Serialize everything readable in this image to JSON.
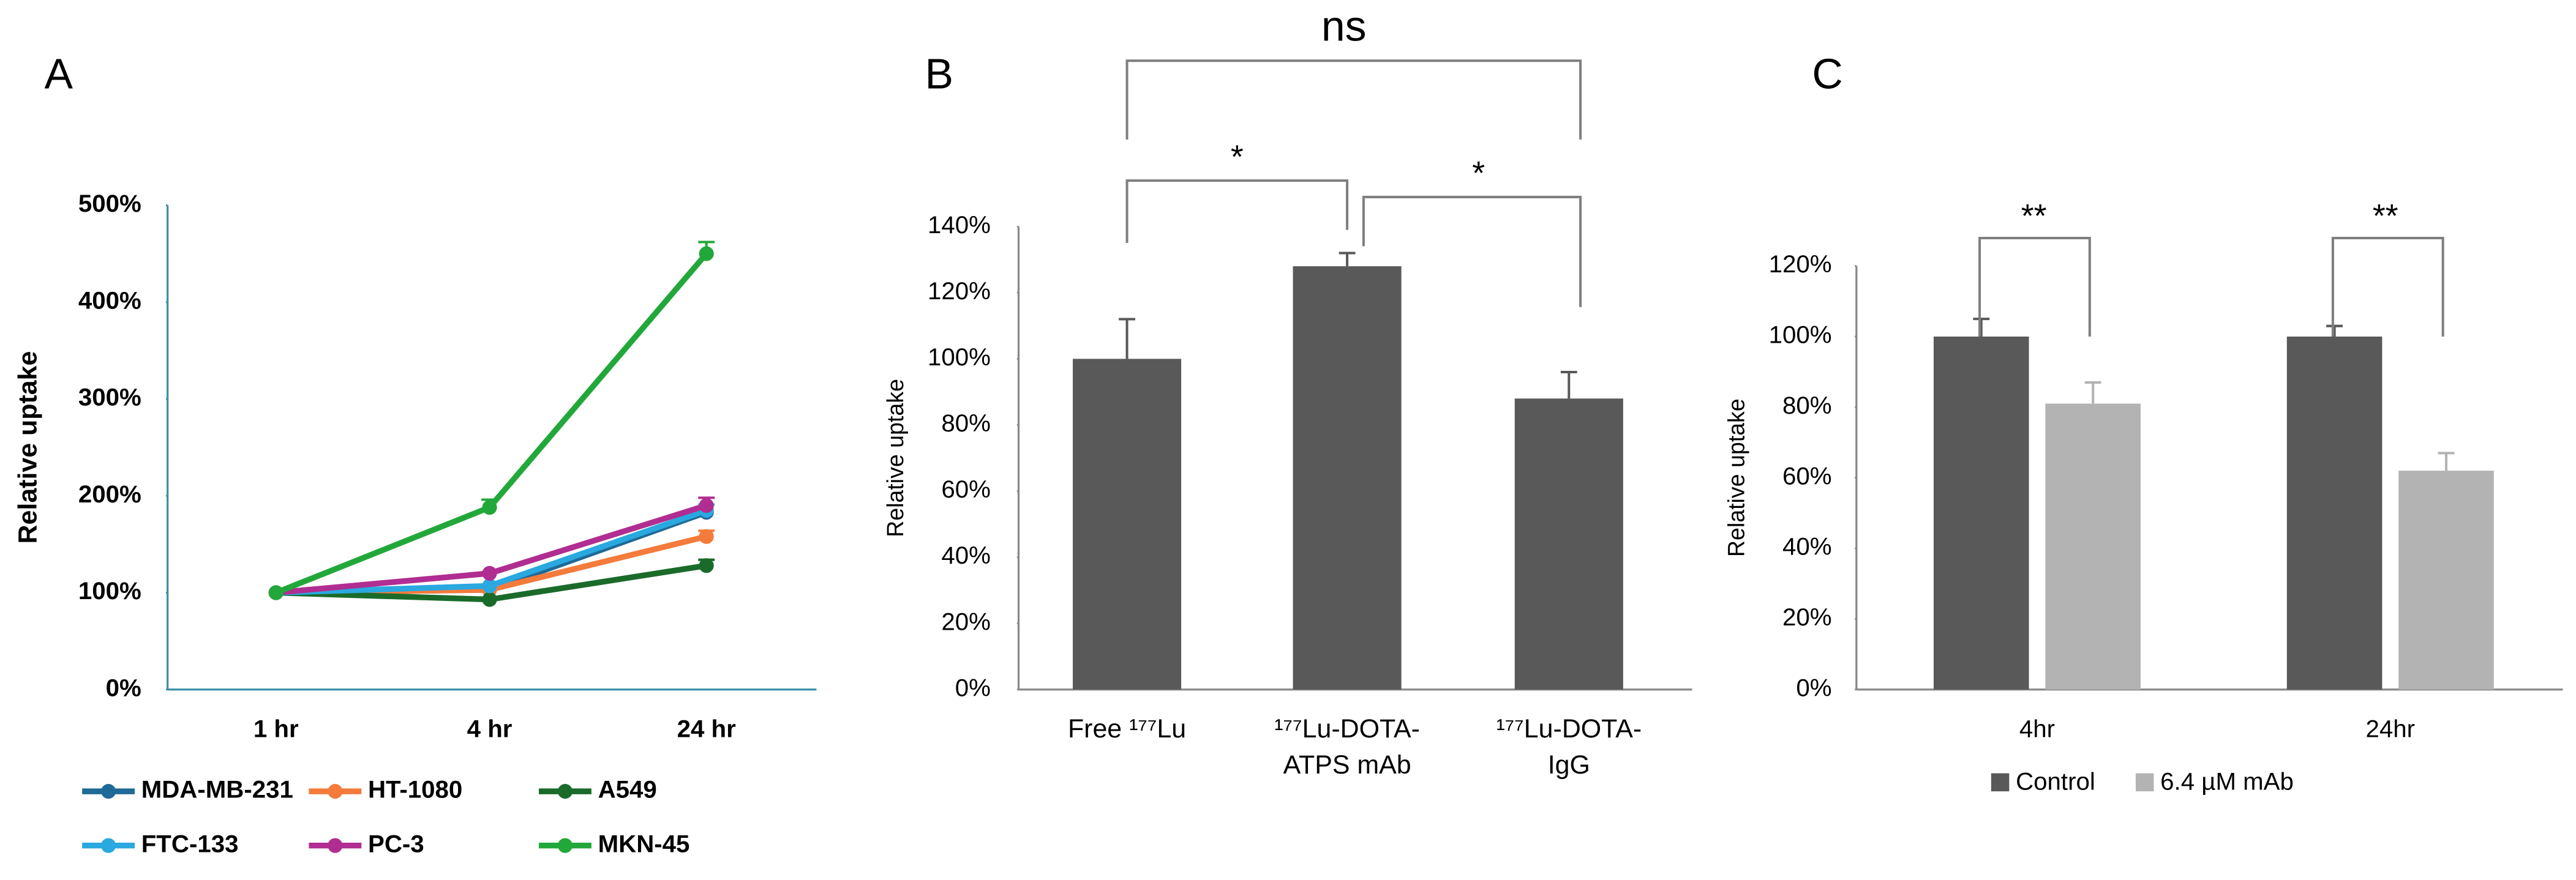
{
  "chart_data": [
    {
      "type": "line",
      "panel_label": "A",
      "ylabel": "Relative uptake",
      "categories": [
        "1 hr",
        "4 hr",
        "24 hr"
      ],
      "series": [
        {
          "name": "MDA-MB-231",
          "color": "#1f6a96",
          "values": [
            100,
            103,
            183
          ],
          "errors": [
            null,
            null,
            null
          ]
        },
        {
          "name": "HT-1080",
          "color": "#f47b3b",
          "values": [
            100,
            103,
            158
          ],
          "errors": [
            null,
            null,
            6
          ]
        },
        {
          "name": "A549",
          "color": "#1a6b2a",
          "values": [
            100,
            93,
            128
          ],
          "errors": [
            null,
            null,
            6
          ]
        },
        {
          "name": "FTC-133",
          "color": "#2aa8e0",
          "values": [
            100,
            107,
            185
          ],
          "errors": [
            null,
            null,
            6
          ]
        },
        {
          "name": "PC-3",
          "color": "#b02d91",
          "values": [
            100,
            120,
            190
          ],
          "errors": [
            null,
            null,
            8
          ]
        },
        {
          "name": "MKN-45",
          "color": "#22a83a",
          "values": [
            100,
            188,
            450
          ],
          "errors": [
            null,
            8,
            12
          ]
        }
      ],
      "ylim": [
        0,
        500
      ],
      "yticks": [
        {
          "value": 0,
          "label": "0%"
        },
        {
          "value": 100,
          "label": "100%"
        },
        {
          "value": 200,
          "label": "200%"
        },
        {
          "value": 300,
          "label": "300%"
        },
        {
          "value": 400,
          "label": "400%"
        },
        {
          "value": 500,
          "label": "500%"
        }
      ]
    },
    {
      "type": "bar",
      "panel_label": "B",
      "ylabel": "Relative uptake",
      "color": "#595959",
      "categories": [
        [
          "Free ¹⁷⁷Lu"
        ],
        [
          "¹⁷⁷Lu-DOTA-",
          "ATPS mAb"
        ],
        [
          "¹⁷⁷Lu-DOTA-",
          "IgG"
        ]
      ],
      "values": [
        100,
        128,
        88
      ],
      "errors": [
        12,
        4,
        8
      ],
      "ylim": [
        0,
        140
      ],
      "yticks": [
        {
          "value": 0,
          "label": "0%"
        },
        {
          "value": 20,
          "label": "20%"
        },
        {
          "value": 40,
          "label": "40%"
        },
        {
          "value": 60,
          "label": "60%"
        },
        {
          "value": 80,
          "label": "80%"
        },
        {
          "value": 100,
          "label": "100%"
        },
        {
          "value": 120,
          "label": "120%"
        },
        {
          "value": 140,
          "label": "140%"
        }
      ],
      "annotations": [
        "ns",
        "*",
        "*"
      ]
    },
    {
      "type": "grouped_bar",
      "panel_label": "C",
      "ylabel": "Relative uptake",
      "categories": [
        "4hr",
        "24hr"
      ],
      "series": [
        {
          "name": "Control",
          "color": "#595959",
          "values": [
            100,
            100
          ],
          "errors": [
            5,
            3
          ]
        },
        {
          "name": "6.4 µM mAb",
          "color": "#b3b3b3",
          "values": [
            81,
            62
          ],
          "errors": [
            6,
            5
          ]
        }
      ],
      "ylim": [
        0,
        120
      ],
      "yticks": [
        {
          "value": 0,
          "label": "0%"
        },
        {
          "value": 20,
          "label": "20%"
        },
        {
          "value": 40,
          "label": "40%"
        },
        {
          "value": 60,
          "label": "60%"
        },
        {
          "value": 80,
          "label": "80%"
        },
        {
          "value": 100,
          "label": "100%"
        },
        {
          "value": 120,
          "label": "120%"
        }
      ],
      "annotations": [
        "**",
        "**"
      ]
    }
  ]
}
